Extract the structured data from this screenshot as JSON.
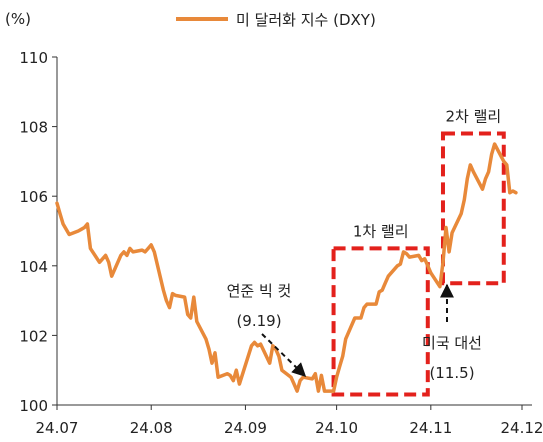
{
  "chart_data": {
    "type": "line",
    "unit_label": "(%)",
    "legend": {
      "label": "미 달러화 지수 (DXY)",
      "placement": "top"
    },
    "color": "#E8893A",
    "highlight_color": "#E3211C",
    "xlim": [
      "2024-07-01",
      "2024-12-01"
    ],
    "x_tick_labels": [
      "24.07",
      "24.08",
      "24.09",
      "24.10",
      "24.11",
      "24.12"
    ],
    "x_tick_dates": [
      "2024-07-01",
      "2024-08-01",
      "2024-09-01",
      "2024-10-01",
      "2024-11-01",
      "2024-12-01"
    ],
    "ylim": [
      100,
      110
    ],
    "y_ticks": [
      100,
      102,
      104,
      106,
      108,
      110
    ],
    "grid": false,
    "series": [
      {
        "name": "미 달러화 지수 (DXY)",
        "x": [
          "2024-07-01",
          "2024-07-02",
          "2024-07-03",
          "2024-07-05",
          "2024-07-08",
          "2024-07-09",
          "2024-07-10",
          "2024-07-11",
          "2024-07-12",
          "2024-07-15",
          "2024-07-16",
          "2024-07-17",
          "2024-07-18",
          "2024-07-19",
          "2024-07-22",
          "2024-07-23",
          "2024-07-24",
          "2024-07-25",
          "2024-07-26",
          "2024-07-29",
          "2024-07-30",
          "2024-07-31",
          "2024-08-01",
          "2024-08-02",
          "2024-08-05",
          "2024-08-06",
          "2024-08-07",
          "2024-08-08",
          "2024-08-09",
          "2024-08-12",
          "2024-08-13",
          "2024-08-14",
          "2024-08-15",
          "2024-08-16",
          "2024-08-19",
          "2024-08-20",
          "2024-08-21",
          "2024-08-22",
          "2024-08-23",
          "2024-08-26",
          "2024-08-27",
          "2024-08-28",
          "2024-08-29",
          "2024-08-30",
          "2024-09-03",
          "2024-09-04",
          "2024-09-05",
          "2024-09-06",
          "2024-09-09",
          "2024-09-10",
          "2024-09-11",
          "2024-09-12",
          "2024-09-13",
          "2024-09-16",
          "2024-09-17",
          "2024-09-18",
          "2024-09-19",
          "2024-09-20",
          "2024-09-23",
          "2024-09-24",
          "2024-09-25",
          "2024-09-26",
          "2024-09-27",
          "2024-09-30",
          "2024-10-01",
          "2024-10-02",
          "2024-10-03",
          "2024-10-04",
          "2024-10-07",
          "2024-10-08",
          "2024-10-09",
          "2024-10-10",
          "2024-10-11",
          "2024-10-14",
          "2024-10-15",
          "2024-10-16",
          "2024-10-17",
          "2024-10-18",
          "2024-10-21",
          "2024-10-22",
          "2024-10-23",
          "2024-10-24",
          "2024-10-25",
          "2024-10-28",
          "2024-10-29",
          "2024-10-30",
          "2024-10-31",
          "2024-11-01",
          "2024-11-04",
          "2024-11-05",
          "2024-11-06",
          "2024-11-07",
          "2024-11-08",
          "2024-11-11",
          "2024-11-12",
          "2024-11-13",
          "2024-11-14",
          "2024-11-15",
          "2024-11-18",
          "2024-11-19",
          "2024-11-20",
          "2024-11-21",
          "2024-11-22",
          "2024-11-25",
          "2024-11-26",
          "2024-11-27",
          "2024-11-28",
          "2024-11-29"
        ],
        "y": [
          105.8,
          105.5,
          105.2,
          104.9,
          105.0,
          105.05,
          105.1,
          105.2,
          104.5,
          104.1,
          104.2,
          104.3,
          104.1,
          103.7,
          104.3,
          104.4,
          104.3,
          104.5,
          104.4,
          104.45,
          104.4,
          104.5,
          104.6,
          104.4,
          103.3,
          103.0,
          102.8,
          103.2,
          103.15,
          103.1,
          102.6,
          102.5,
          103.1,
          102.4,
          101.9,
          101.6,
          101.2,
          101.5,
          100.8,
          100.9,
          100.85,
          100.7,
          101.0,
          100.6,
          101.7,
          101.8,
          101.7,
          101.75,
          101.2,
          101.7,
          101.6,
          101.4,
          101.0,
          100.8,
          100.6,
          100.4,
          100.7,
          100.8,
          100.75,
          100.9,
          100.4,
          100.85,
          100.4,
          100.4,
          100.8,
          101.1,
          101.4,
          101.9,
          102.5,
          102.5,
          102.5,
          102.8,
          102.9,
          102.9,
          103.25,
          103.3,
          103.5,
          103.7,
          104.0,
          104.05,
          104.4,
          104.35,
          104.25,
          104.3,
          104.15,
          104.2,
          104.0,
          103.8,
          103.4,
          104.1,
          105.1,
          104.4,
          104.95,
          105.5,
          105.9,
          106.5,
          106.9,
          106.7,
          106.2,
          106.5,
          106.7,
          107.2,
          107.5,
          107.0,
          106.9,
          106.1,
          106.15,
          106.1
        ]
      }
    ],
    "annotations": [
      {
        "id": "cut",
        "lines": [
          "연준 빅 컷",
          "(9.19)"
        ],
        "x": "2024-09-19"
      },
      {
        "id": "election",
        "lines": [
          "미국 대선",
          "(11.5)"
        ],
        "x": "2024-11-05"
      },
      {
        "id": "rally1",
        "label": "1차 랠리",
        "x_range": [
          "2024-09-30",
          "2024-10-31"
        ],
        "y_range": [
          100.3,
          104.5
        ]
      },
      {
        "id": "rally2",
        "label": "2차 랠리",
        "x_range": [
          "2024-11-05",
          "2024-11-25"
        ],
        "y_range": [
          103.5,
          107.8
        ]
      }
    ]
  }
}
